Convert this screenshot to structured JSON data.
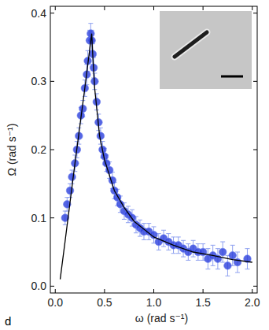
{
  "chart_data": {
    "type": "scatter",
    "panel_label": "d",
    "x_label": "ω (rad s⁻¹)",
    "y_label": "Ω (rad s⁻¹)",
    "xlim": [
      -0.05,
      2.05
    ],
    "ylim": [
      -0.01,
      0.41
    ],
    "xticks": [
      {
        "value": 0,
        "label": "0.0"
      },
      {
        "value": 0.5,
        "label": "0.5"
      },
      {
        "value": 1,
        "label": "1.0"
      },
      {
        "value": 1.5,
        "label": "1.5"
      },
      {
        "value": 2,
        "label": "2.0"
      }
    ],
    "yticks": [
      {
        "value": 0,
        "label": "0.0"
      },
      {
        "value": 0.1,
        "label": "0.1"
      },
      {
        "value": 0.2,
        "label": "0.2"
      },
      {
        "value": 0.3,
        "label": "0.3"
      },
      {
        "value": 0.4,
        "label": "0.4"
      }
    ],
    "grid": false,
    "series": [
      {
        "type": "scatter",
        "color": "#2b3fdc",
        "marker": "circle",
        "x": [
          0.1,
          0.12,
          0.15,
          0.17,
          0.2,
          0.22,
          0.24,
          0.26,
          0.28,
          0.3,
          0.32,
          0.33,
          0.35,
          0.36,
          0.37,
          0.38,
          0.39,
          0.4,
          0.42,
          0.44,
          0.46,
          0.48,
          0.5,
          0.52,
          0.55,
          0.58,
          0.6,
          0.63,
          0.66,
          0.7,
          0.74,
          0.78,
          0.82,
          0.86,
          0.9,
          0.95,
          1.0,
          1.05,
          1.1,
          1.15,
          1.2,
          1.25,
          1.3,
          1.35,
          1.4,
          1.45,
          1.5,
          1.55,
          1.6,
          1.65,
          1.7,
          1.75,
          1.8,
          1.85,
          1.95
        ],
        "values": [
          0.1,
          0.12,
          0.14,
          0.16,
          0.18,
          0.2,
          0.22,
          0.25,
          0.26,
          0.29,
          0.31,
          0.33,
          0.36,
          0.37,
          0.36,
          0.34,
          0.32,
          0.3,
          0.27,
          0.24,
          0.22,
          0.2,
          0.19,
          0.18,
          0.17,
          0.155,
          0.14,
          0.13,
          0.12,
          0.11,
          0.105,
          0.1,
          0.09,
          0.085,
          0.08,
          0.08,
          0.075,
          0.065,
          0.07,
          0.065,
          0.06,
          0.06,
          0.055,
          0.05,
          0.055,
          0.05,
          0.05,
          0.04,
          0.045,
          0.04,
          0.05,
          0.03,
          0.045,
          0.035,
          0.04
        ],
        "errors": [
          0.01,
          0.01,
          0.01,
          0.01,
          0.012,
          0.012,
          0.012,
          0.012,
          0.012,
          0.012,
          0.015,
          0.015,
          0.015,
          0.015,
          0.015,
          0.015,
          0.015,
          0.012,
          0.012,
          0.012,
          0.012,
          0.012,
          0.012,
          0.012,
          0.012,
          0.012,
          0.012,
          0.012,
          0.012,
          0.012,
          0.012,
          0.012,
          0.012,
          0.012,
          0.012,
          0.012,
          0.012,
          0.012,
          0.012,
          0.012,
          0.012,
          0.012,
          0.012,
          0.012,
          0.012,
          0.012,
          0.012,
          0.015,
          0.015,
          0.015,
          0.015,
          0.015,
          0.015,
          0.015,
          0.015
        ]
      },
      {
        "type": "line",
        "color": "#000000",
        "x": [
          0.05,
          0.1,
          0.2,
          0.3,
          0.37,
          0.38,
          0.4,
          0.45,
          0.5,
          0.6,
          0.7,
          0.8,
          1.0,
          1.2,
          1.4,
          1.6,
          1.8,
          2.0
        ],
        "values": [
          0.01,
          0.066,
          0.18,
          0.29,
          0.37,
          0.34,
          0.29,
          0.22,
          0.185,
          0.14,
          0.115,
          0.095,
          0.072,
          0.06,
          0.05,
          0.045,
          0.039,
          0.035
        ]
      }
    ]
  }
}
